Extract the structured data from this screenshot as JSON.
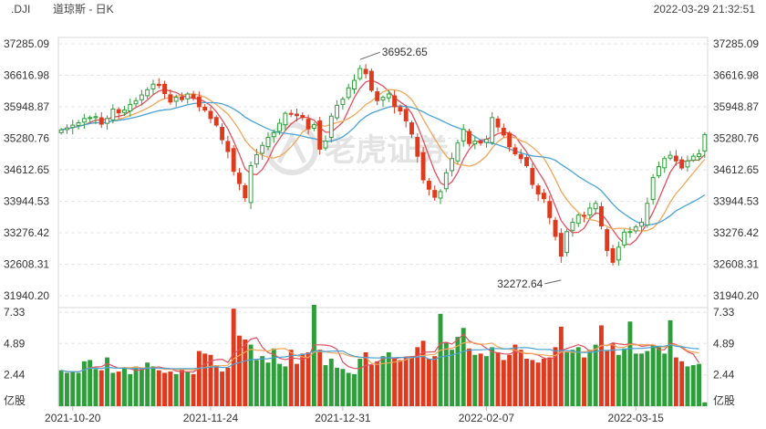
{
  "header": {
    "symbol": ".DJI",
    "name": "道琼斯 - 日K",
    "datetime": "2022-03-29 21:32:51"
  },
  "watermark": {
    "text": "老虎证券"
  },
  "colors": {
    "up": "#2e9e3a",
    "down": "#e03a1e",
    "ma5": "#e05060",
    "ma10": "#f2a65a",
    "ma20": "#4aa3d6",
    "vol_ma5": "#e05060",
    "vol_ma10": "#f2a65a",
    "vol_ma20": "#4aa3d6"
  },
  "chart_data": [
    {
      "type": "candlestick",
      "title": "",
      "ylim": [
        31940.2,
        37285.09
      ],
      "price_ticks": [
        "37285.09",
        "36616.98",
        "35948.87",
        "35280.76",
        "34612.65",
        "33944.53",
        "33276.42",
        "32608.31",
        "31940.20"
      ],
      "date_labels": [
        {
          "index": 2,
          "label": "2021-10-20"
        },
        {
          "index": 26,
          "label": "2021-11-24"
        },
        {
          "index": 49,
          "label": "2021-12-31"
        },
        {
          "index": 74,
          "label": "2022-02-07"
        },
        {
          "index": 100,
          "label": "2022-03-15"
        }
      ],
      "annotations": [
        {
          "index": 52,
          "value": "36952.65",
          "type": "high"
        },
        {
          "index": 87,
          "value": "32272.64",
          "type": "low"
        }
      ],
      "closes": [
        35460,
        35500,
        35560,
        35610,
        35700,
        35720,
        35740,
        35580,
        35700,
        35900,
        35820,
        35880,
        36000,
        36080,
        36200,
        36310,
        36430,
        36400,
        36230,
        36050,
        36150,
        36100,
        36220,
        36130,
        35950,
        35880,
        35700,
        35560,
        35250,
        35000,
        34580,
        34320,
        34020,
        34700,
        34930,
        35130,
        35300,
        35400,
        35600,
        35810,
        35800,
        35760,
        35720,
        35480,
        35570,
        35050,
        35220,
        35750,
        35980,
        36110,
        36350,
        36510,
        36760,
        36650,
        36300,
        36080,
        36150,
        36220,
        35950,
        35860,
        35650,
        35370,
        34900,
        34400,
        34200,
        34030,
        34150,
        34550,
        34850,
        35180,
        35470,
        35170,
        35220,
        35180,
        35260,
        35720,
        35520,
        35350,
        35100,
        34950,
        34850,
        34700,
        34300,
        34100,
        34000,
        33600,
        33200,
        32780,
        33300,
        33500,
        33650,
        33630,
        33800,
        33900,
        33420,
        32900,
        32650,
        32970,
        33290,
        33300,
        33400,
        33500,
        33900,
        34450,
        34680,
        34850,
        34920,
        34800,
        34650,
        34800,
        34900,
        34950,
        35360
      ],
      "volume_scale": [
        0.0,
        7.33
      ],
      "volume_ticks": [
        "7.33",
        "4.89",
        "2.44"
      ],
      "volume_unit": "亿股",
      "volumes": [
        2.8,
        2.6,
        2.7,
        2.6,
        3.5,
        3.6,
        2.9,
        2.8,
        3.8,
        2.6,
        2.7,
        3.0,
        2.5,
        3.1,
        2.9,
        3.4,
        3.1,
        2.8,
        2.6,
        2.7,
        2.5,
        2.9,
        2.7,
        2.5,
        4.3,
        4.1,
        4.0,
        3.2,
        2.7,
        3.0,
        7.6,
        5.5,
        5.2,
        4.8,
        3.6,
        3.9,
        3.4,
        4.5,
        3.3,
        3.1,
        4.4,
        3.3,
        4.1,
        4.2,
        7.9,
        4.4,
        3.2,
        3.7,
        3.0,
        2.9,
        2.6,
        2.5,
        3.7,
        4.2,
        3.2,
        3.5,
        3.9,
        4.2,
        3.7,
        3.6,
        3.8,
        3.9,
        4.6,
        5.1,
        3.7,
        3.9,
        7.2,
        5.0,
        4.4,
        5.4,
        6.1,
        4.5,
        4.0,
        4.1,
        3.9,
        4.6,
        4.2,
        3.6,
        4.0,
        4.8,
        4.4,
        3.7,
        3.6,
        3.4,
        3.7,
        3.8,
        4.6,
        6.2,
        4.2,
        4.4,
        4.6,
        3.8,
        4.4,
        4.8,
        6.3,
        4.3,
        4.9,
        4.0,
        4.5,
        6.6,
        4.1,
        4.1,
        4.3,
        4.8,
        4.7,
        4.1,
        6.7,
        3.8,
        3.5,
        3.1,
        3.2,
        3.3,
        0.3
      ]
    }
  ]
}
